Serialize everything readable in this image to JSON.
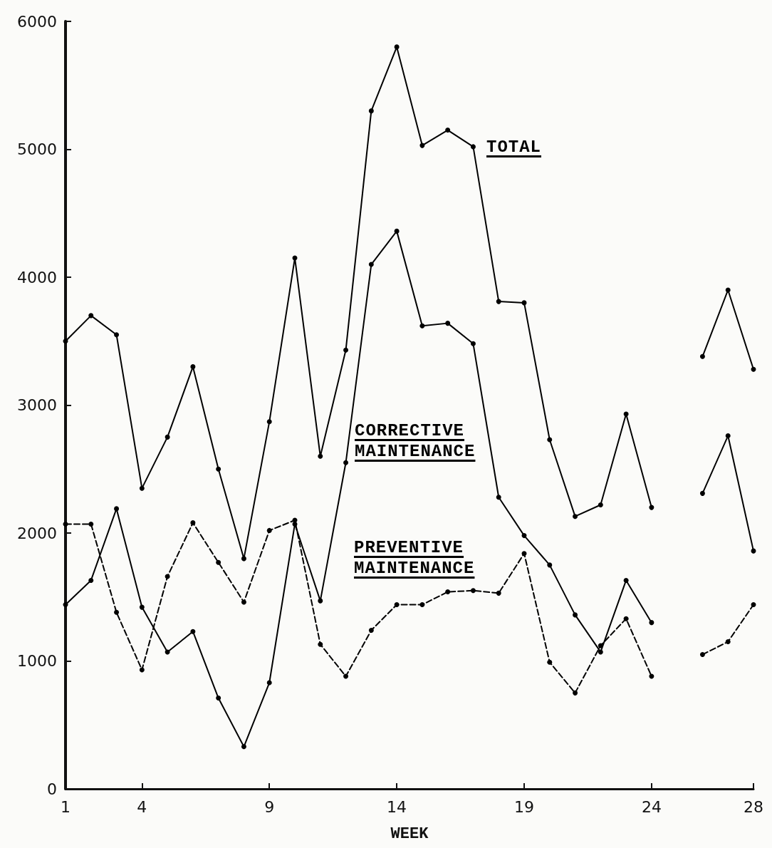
{
  "chart_data": {
    "type": "line",
    "xlabel": "WEEK",
    "x": [
      1,
      2,
      3,
      4,
      5,
      6,
      7,
      8,
      9,
      10,
      11,
      12,
      13,
      14,
      15,
      16,
      17,
      18,
      19,
      20,
      21,
      22,
      23,
      24,
      25,
      26,
      27,
      28
    ],
    "xlim": [
      1,
      28
    ],
    "xticks": [
      1,
      4,
      9,
      14,
      19,
      24,
      28
    ],
    "ylim": [
      0,
      6000
    ],
    "yticks": [
      0,
      1000,
      2000,
      3000,
      4000,
      5000,
      6000
    ],
    "marker": "circle",
    "series": [
      {
        "name": "TOTAL",
        "color": "#000000",
        "line_style": "solid",
        "values": [
          3500,
          3700,
          3550,
          2350,
          2750,
          3300,
          2500,
          1800,
          2870,
          4150,
          2600,
          3430,
          5300,
          5800,
          5030,
          5150,
          5020,
          3810,
          3800,
          2730,
          2130,
          2220,
          2930,
          2200,
          null,
          3380,
          3900,
          3280
        ]
      },
      {
        "name": "CORRECTIVE MAINTENANCE",
        "color": "#000000",
        "line_style": "solid",
        "values": [
          1440,
          1630,
          2190,
          1420,
          1070,
          1230,
          710,
          330,
          830,
          2070,
          1470,
          2550,
          4100,
          4360,
          3620,
          3640,
          3480,
          2280,
          1980,
          1750,
          1360,
          1070,
          1630,
          1300,
          null,
          2310,
          2760,
          1860
        ]
      },
      {
        "name": "PREVENTIVE MAINTENANCE",
        "color": "#000000",
        "line_style": "dashed",
        "values": [
          2070,
          2070,
          1380,
          930,
          1660,
          2080,
          1770,
          1460,
          2020,
          2100,
          1130,
          880,
          1240,
          1440,
          1440,
          1540,
          1550,
          1530,
          1840,
          990,
          750,
          1120,
          1330,
          880,
          null,
          1050,
          1150,
          1440
        ]
      }
    ]
  }
}
